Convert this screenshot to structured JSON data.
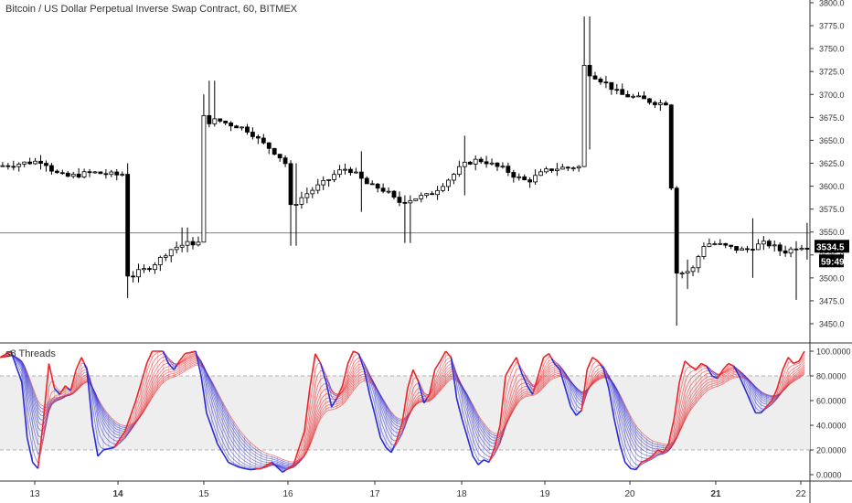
{
  "header": {
    "symbol_title": "Bitcoin / US Dollar Perpetual Inverse Swap Contract, 60, BITMEX"
  },
  "indicator": {
    "title": "s8 Threads"
  },
  "price_badges": {
    "last_price": "3534.5",
    "countdown": "59:49"
  },
  "colors": {
    "up_candle": "#ffffff",
    "down_candle": "#000000",
    "wick": "#000000",
    "bull_thread": "#e8262b",
    "bear_thread": "#2b2bd6",
    "badge_bg": "#000000",
    "badge_text": "#ffffff",
    "grid_dash": "#b0b0b0"
  },
  "chart_data": [
    {
      "type": "candlestick",
      "title": "Bitcoin / US Dollar Perpetual Inverse Swap Contract, 60, BITMEX",
      "ylim": [
        3425,
        3800
      ],
      "y_ticks": [
        "3800.0",
        "3775.0",
        "3750.0",
        "3725.0",
        "3700.0",
        "3675.0",
        "3650.0",
        "3625.0",
        "3600.0",
        "3575.0",
        "3550.0",
        "3525.0",
        "3500.0",
        "3475.0",
        "3450.0"
      ],
      "x_ticks": [
        "13",
        "14",
        "15",
        "16",
        "17",
        "18",
        "19",
        "20",
        "21",
        "22"
      ],
      "bold_x_ticks": [
        "14",
        "21"
      ],
      "horizontal_line": 3549,
      "last_price": 3534.5,
      "close_path": [
        [
          0,
          3622
        ],
        [
          4,
          3625
        ],
        [
          8,
          3628
        ],
        [
          10,
          3615
        ],
        [
          12,
          3610
        ],
        [
          14,
          3612
        ],
        [
          17,
          3615
        ],
        [
          20,
          3613
        ],
        [
          22,
          3612
        ],
        [
          22.8,
          3614
        ],
        [
          23.3,
          3505
        ],
        [
          24,
          3500
        ],
        [
          25,
          3505
        ],
        [
          27,
          3510
        ],
        [
          29,
          3518
        ],
        [
          31,
          3530
        ],
        [
          33,
          3535
        ],
        [
          35,
          3538
        ],
        [
          36.5,
          3538
        ],
        [
          37,
          3680
        ],
        [
          38,
          3670
        ],
        [
          40,
          3672
        ],
        [
          42,
          3668
        ],
        [
          44,
          3665
        ],
        [
          46,
          3660
        ],
        [
          48,
          3648
        ],
        [
          50,
          3640
        ],
        [
          51.5,
          3632
        ],
        [
          52.5,
          3625
        ],
        [
          53,
          3575
        ],
        [
          54,
          3580
        ],
        [
          56,
          3590
        ],
        [
          58,
          3598
        ],
        [
          60,
          3605
        ],
        [
          62,
          3615
        ],
        [
          64,
          3620
        ],
        [
          66,
          3610
        ],
        [
          68,
          3600
        ],
        [
          70,
          3598
        ],
        [
          72,
          3590
        ],
        [
          73,
          3582
        ],
        [
          75,
          3585
        ],
        [
          77,
          3588
        ],
        [
          79,
          3590
        ],
        [
          81,
          3600
        ],
        [
          83,
          3610
        ],
        [
          85,
          3622
        ],
        [
          87,
          3628
        ],
        [
          89,
          3628
        ],
        [
          91,
          3622
        ],
        [
          93,
          3618
        ],
        [
          95,
          3610
        ],
        [
          97,
          3605
        ],
        [
          99,
          3612
        ],
        [
          101,
          3618
        ],
        [
          103,
          3620
        ],
        [
          105,
          3620
        ],
        [
          106,
          3622
        ],
        [
          107,
          3620
        ],
        [
          107.4,
          3732
        ],
        [
          108,
          3725
        ],
        [
          110,
          3718
        ],
        [
          112,
          3710
        ],
        [
          114,
          3700
        ],
        [
          116,
          3698
        ],
        [
          118,
          3695
        ],
        [
          120,
          3692
        ],
        [
          122,
          3690
        ],
        [
          123,
          3692
        ],
        [
          123.5,
          3600
        ],
        [
          124,
          3510
        ],
        [
          125,
          3505
        ],
        [
          127,
          3508
        ],
        [
          128,
          3512
        ],
        [
          129,
          3535
        ],
        [
          131,
          3538
        ],
        [
          133,
          3535
        ],
        [
          135,
          3532
        ],
        [
          137,
          3530
        ],
        [
          139,
          3535
        ],
        [
          141,
          3538
        ],
        [
          143,
          3532
        ],
        [
          144,
          3528
        ],
        [
          145,
          3530
        ],
        [
          146,
          3532
        ],
        [
          147,
          3535
        ],
        [
          148,
          3534.5
        ]
      ],
      "wick_extremes": [
        {
          "x": 22.8,
          "high": 3625,
          "low": 3478
        },
        {
          "x": 33.5,
          "high": 3555,
          "low": 3528
        },
        {
          "x": 37.2,
          "high": 3700,
          "low": 3540
        },
        {
          "x": 38.5,
          "high": 3715,
          "low": 3665
        },
        {
          "x": 53.5,
          "high": 3625,
          "low": 3535
        },
        {
          "x": 66,
          "high": 3638,
          "low": 3572
        },
        {
          "x": 74.5,
          "high": 3590,
          "low": 3538
        },
        {
          "x": 85,
          "high": 3655,
          "low": 3590
        },
        {
          "x": 107.5,
          "high": 3785,
          "low": 3640
        },
        {
          "x": 123.8,
          "high": 3595,
          "low": 3448
        },
        {
          "x": 126,
          "high": 3520,
          "low": 3488
        },
        {
          "x": 138,
          "high": 3565,
          "low": 3500
        },
        {
          "x": 146,
          "high": 3540,
          "low": 3476
        },
        {
          "x": 148,
          "high": 3560,
          "low": 3520
        }
      ]
    },
    {
      "type": "line",
      "title": "s8 Threads",
      "ylim": [
        0,
        100
      ],
      "y_ticks": [
        "100.0000",
        "80.0000",
        "60.0000",
        "40.0000",
        "20.0000",
        "0.0000"
      ],
      "reference_lines": [
        80,
        20
      ],
      "fast_oscillator": [
        [
          0,
          95
        ],
        [
          2,
          100
        ],
        [
          4,
          75
        ],
        [
          5,
          30
        ],
        [
          6,
          10
        ],
        [
          7,
          5
        ],
        [
          8,
          45
        ],
        [
          9,
          90
        ],
        [
          10,
          70
        ],
        [
          11,
          65
        ],
        [
          12,
          72
        ],
        [
          13,
          68
        ],
        [
          14,
          85
        ],
        [
          15,
          95
        ],
        [
          16,
          85
        ],
        [
          17,
          40
        ],
        [
          18,
          15
        ],
        [
          19,
          20
        ],
        [
          21,
          22
        ],
        [
          23,
          35
        ],
        [
          25,
          60
        ],
        [
          27,
          90
        ],
        [
          28,
          100
        ],
        [
          30,
          100
        ],
        [
          31,
          90
        ],
        [
          32,
          85
        ],
        [
          33,
          92
        ],
        [
          34,
          98
        ],
        [
          36,
          100
        ],
        [
          37,
          80
        ],
        [
          38,
          50
        ],
        [
          40,
          25
        ],
        [
          42,
          10
        ],
        [
          44,
          6
        ],
        [
          46,
          4
        ],
        [
          48,
          5
        ],
        [
          50,
          10
        ],
        [
          52,
          2
        ],
        [
          54,
          8
        ],
        [
          56,
          35
        ],
        [
          57,
          70
        ],
        [
          58,
          98
        ],
        [
          59,
          90
        ],
        [
          60,
          75
        ],
        [
          61,
          55
        ],
        [
          62,
          62
        ],
        [
          63,
          72
        ],
        [
          64,
          90
        ],
        [
          65,
          100
        ],
        [
          66,
          98
        ],
        [
          67,
          85
        ],
        [
          68,
          65
        ],
        [
          69,
          48
        ],
        [
          70,
          30
        ],
        [
          71,
          22
        ],
        [
          72,
          18
        ],
        [
          73,
          28
        ],
        [
          74,
          42
        ],
        [
          75,
          70
        ],
        [
          76,
          85
        ],
        [
          77,
          75
        ],
        [
          78,
          58
        ],
        [
          79,
          65
        ],
        [
          80,
          85
        ],
        [
          81,
          92
        ],
        [
          82,
          100
        ],
        [
          83,
          95
        ],
        [
          84,
          62
        ],
        [
          85,
          45
        ],
        [
          86,
          30
        ],
        [
          87,
          15
        ],
        [
          88,
          8
        ],
        [
          89,
          12
        ],
        [
          90,
          10
        ],
        [
          91,
          22
        ],
        [
          92,
          40
        ],
        [
          93,
          80
        ],
        [
          94,
          88
        ],
        [
          95,
          95
        ],
        [
          96,
          82
        ],
        [
          97,
          72
        ],
        [
          98,
          65
        ],
        [
          99,
          80
        ],
        [
          100,
          95
        ],
        [
          101,
          98
        ],
        [
          102,
          90
        ],
        [
          103,
          85
        ],
        [
          104,
          70
        ],
        [
          105,
          55
        ],
        [
          106,
          48
        ],
        [
          107,
          52
        ],
        [
          108,
          85
        ],
        [
          109,
          95
        ],
        [
          110,
          92
        ],
        [
          111,
          86
        ],
        [
          112,
          70
        ],
        [
          113,
          45
        ],
        [
          114,
          25
        ],
        [
          115,
          10
        ],
        [
          116,
          5
        ],
        [
          117,
          4
        ],
        [
          118,
          10
        ],
        [
          119,
          12
        ],
        [
          120,
          15
        ],
        [
          121,
          20
        ],
        [
          122,
          18
        ],
        [
          123,
          25
        ],
        [
          124,
          45
        ],
        [
          125,
          75
        ],
        [
          126,
          92
        ],
        [
          127,
          88
        ],
        [
          128,
          85
        ],
        [
          129,
          90
        ],
        [
          130,
          88
        ],
        [
          131,
          80
        ],
        [
          132,
          78
        ],
        [
          133,
          85
        ],
        [
          134,
          90
        ],
        [
          135,
          88
        ],
        [
          136,
          80
        ],
        [
          137,
          70
        ],
        [
          138,
          60
        ],
        [
          139,
          50
        ],
        [
          140,
          50
        ],
        [
          141,
          55
        ],
        [
          142,
          60
        ],
        [
          143,
          70
        ],
        [
          144,
          85
        ],
        [
          145,
          95
        ],
        [
          146,
          90
        ],
        [
          147,
          92
        ],
        [
          148,
          100
        ]
      ],
      "thread_count": 12
    }
  ]
}
